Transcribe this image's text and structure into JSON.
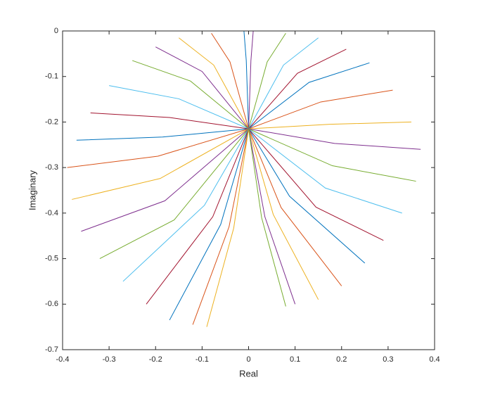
{
  "chart_data": {
    "type": "line",
    "xlabel": "Real",
    "ylabel": "Imaginary",
    "xlim": [
      -0.4,
      0.4
    ],
    "xticks": [
      -0.4,
      -0.3,
      -0.2,
      -0.1,
      0,
      0.1,
      0.2,
      0.3,
      0.4
    ],
    "ylim": [
      -0.7,
      0
    ],
    "yticks": [
      -0.7,
      -0.6,
      -0.5,
      -0.4,
      -0.3,
      -0.2,
      -0.1,
      0
    ],
    "grid": false,
    "series": [
      {
        "color": "#0072BD",
        "x": [
          -0.01,
          -0.005,
          0
        ],
        "values": [
          0,
          -0.065,
          -0.215
        ]
      },
      {
        "color": "#D95319",
        "x": [
          -0.08,
          -0.04,
          0
        ],
        "values": [
          -0.005,
          -0.068,
          -0.215
        ]
      },
      {
        "color": "#EDB120",
        "x": [
          -0.15,
          -0.075,
          0
        ],
        "values": [
          -0.015,
          -0.075,
          -0.215
        ]
      },
      {
        "color": "#7E2F8E",
        "x": [
          -0.2,
          -0.1,
          0
        ],
        "values": [
          -0.035,
          -0.089,
          -0.215
        ]
      },
      {
        "color": "#77AC30",
        "x": [
          -0.25,
          -0.125,
          0
        ],
        "values": [
          -0.065,
          -0.11,
          -0.215
        ]
      },
      {
        "color": "#4DBEEE",
        "x": [
          -0.3,
          -0.15,
          0
        ],
        "values": [
          -0.12,
          -0.149,
          -0.215
        ]
      },
      {
        "color": "#A2142F",
        "x": [
          -0.34,
          -0.17,
          0
        ],
        "values": [
          -0.18,
          -0.19,
          -0.215
        ]
      },
      {
        "color": "#0072BD",
        "x": [
          -0.37,
          -0.185,
          0
        ],
        "values": [
          -0.24,
          -0.233,
          -0.215
        ]
      },
      {
        "color": "#D95319",
        "x": [
          -0.39,
          -0.195,
          0
        ],
        "values": [
          -0.3,
          -0.275,
          -0.215
        ]
      },
      {
        "color": "#EDB120",
        "x": [
          -0.38,
          -0.19,
          0
        ],
        "values": [
          -0.37,
          -0.324,
          -0.215
        ]
      },
      {
        "color": "#7E2F8E",
        "x": [
          -0.36,
          -0.18,
          0
        ],
        "values": [
          -0.44,
          -0.373,
          -0.215
        ]
      },
      {
        "color": "#77AC30",
        "x": [
          -0.32,
          -0.16,
          0
        ],
        "values": [
          -0.5,
          -0.415,
          -0.215
        ]
      },
      {
        "color": "#4DBEEE",
        "x": [
          -0.27,
          -0.095,
          0
        ],
        "values": [
          -0.55,
          -0.383,
          -0.215
        ]
      },
      {
        "color": "#A2142F",
        "x": [
          -0.22,
          -0.077,
          0
        ],
        "values": [
          -0.6,
          -0.408,
          -0.215
        ]
      },
      {
        "color": "#0072BD",
        "x": [
          -0.17,
          -0.06,
          0
        ],
        "values": [
          -0.635,
          -0.425,
          -0.215
        ]
      },
      {
        "color": "#D95319",
        "x": [
          -0.12,
          -0.042,
          0
        ],
        "values": [
          -0.645,
          -0.43,
          -0.215
        ]
      },
      {
        "color": "#EDB120",
        "x": [
          -0.09,
          -0.032,
          0
        ],
        "values": [
          -0.65,
          -0.433,
          -0.215
        ]
      },
      {
        "color": "#7E2F8E",
        "x": [
          0.01,
          0.005,
          0
        ],
        "values": [
          0,
          -0.065,
          -0.215
        ]
      },
      {
        "color": "#77AC30",
        "x": [
          0.08,
          0.04,
          0
        ],
        "values": [
          -0.005,
          -0.068,
          -0.215
        ]
      },
      {
        "color": "#4DBEEE",
        "x": [
          0.15,
          0.075,
          0
        ],
        "values": [
          -0.015,
          -0.075,
          -0.215
        ]
      },
      {
        "color": "#A2142F",
        "x": [
          0.21,
          0.105,
          0
        ],
        "values": [
          -0.04,
          -0.093,
          -0.215
        ]
      },
      {
        "color": "#0072BD",
        "x": [
          0.26,
          0.13,
          0
        ],
        "values": [
          -0.07,
          -0.113,
          -0.215
        ]
      },
      {
        "color": "#D95319",
        "x": [
          0.31,
          0.155,
          0
        ],
        "values": [
          -0.13,
          -0.156,
          -0.215
        ]
      },
      {
        "color": "#EDB120",
        "x": [
          0.35,
          0.175,
          0
        ],
        "values": [
          -0.2,
          -0.205,
          -0.215
        ]
      },
      {
        "color": "#7E2F8E",
        "x": [
          0.37,
          0.185,
          0
        ],
        "values": [
          -0.26,
          -0.247,
          -0.215
        ]
      },
      {
        "color": "#77AC30",
        "x": [
          0.36,
          0.18,
          0
        ],
        "values": [
          -0.33,
          -0.296,
          -0.215
        ]
      },
      {
        "color": "#4DBEEE",
        "x": [
          0.33,
          0.165,
          0
        ],
        "values": [
          -0.4,
          -0.345,
          -0.215
        ]
      },
      {
        "color": "#A2142F",
        "x": [
          0.29,
          0.145,
          0
        ],
        "values": [
          -0.46,
          -0.387,
          -0.215
        ]
      },
      {
        "color": "#0072BD",
        "x": [
          0.25,
          0.088,
          0
        ],
        "values": [
          -0.51,
          -0.363,
          -0.215
        ]
      },
      {
        "color": "#D95319",
        "x": [
          0.2,
          0.07,
          0
        ],
        "values": [
          -0.56,
          -0.388,
          -0.215
        ]
      },
      {
        "color": "#EDB120",
        "x": [
          0.15,
          0.053,
          0
        ],
        "values": [
          -0.59,
          -0.403,
          -0.215
        ]
      },
      {
        "color": "#7E2F8E",
        "x": [
          0.1,
          0.035,
          0
        ],
        "values": [
          -0.6,
          -0.408,
          -0.215
        ]
      },
      {
        "color": "#77AC30",
        "x": [
          0.08,
          0.028,
          0
        ],
        "values": [
          -0.605,
          -0.41,
          -0.215
        ]
      }
    ]
  }
}
